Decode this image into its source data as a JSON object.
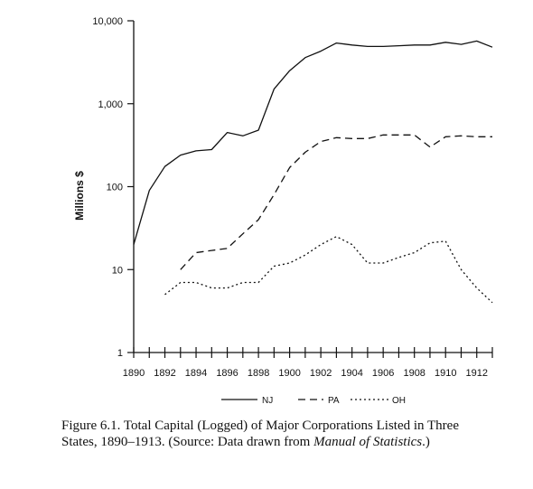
{
  "chart_data": {
    "type": "line",
    "ylabel": "Millions $",
    "xlabel": "",
    "y_scale": "log",
    "ylim": [
      1,
      10000
    ],
    "xlim": [
      1890,
      1913
    ],
    "y_ticks": [
      1,
      10,
      100,
      1000,
      10000
    ],
    "y_tick_labels": [
      "1",
      "10",
      "100",
      "1,000",
      "10,000"
    ],
    "x_tick_labels": [
      "1890",
      "1892",
      "1894",
      "1896",
      "1898",
      "1900",
      "1902",
      "1904",
      "1906",
      "1908",
      "1910",
      "1912"
    ],
    "legend_position": "bottom",
    "series": [
      {
        "name": "NJ",
        "style": "solid",
        "x": [
          1890,
          1891,
          1892,
          1893,
          1894,
          1895,
          1896,
          1897,
          1898,
          1899,
          1900,
          1901,
          1902,
          1903,
          1904,
          1905,
          1906,
          1907,
          1908,
          1909,
          1910,
          1911,
          1912,
          1913
        ],
        "values": [
          20,
          90,
          175,
          240,
          270,
          280,
          450,
          410,
          480,
          1500,
          2500,
          3600,
          4300,
          5400,
          5100,
          4900,
          4900,
          5000,
          5100,
          5100,
          5500,
          5200,
          5700,
          4800
        ]
      },
      {
        "name": "PA",
        "style": "dashed",
        "x": [
          1893,
          1894,
          1895,
          1896,
          1897,
          1898,
          1899,
          1900,
          1901,
          1902,
          1903,
          1904,
          1905,
          1906,
          1907,
          1908,
          1909,
          1910,
          1911,
          1912,
          1913
        ],
        "values": [
          10,
          16,
          17,
          18,
          27,
          40,
          80,
          170,
          260,
          350,
          390,
          380,
          380,
          420,
          420,
          420,
          300,
          400,
          410,
          400,
          400
        ]
      },
      {
        "name": "OH",
        "style": "dotted",
        "x": [
          1892,
          1893,
          1894,
          1895,
          1896,
          1897,
          1898,
          1899,
          1900,
          1901,
          1902,
          1903,
          1904,
          1905,
          1906,
          1907,
          1908,
          1909,
          1910,
          1911,
          1912,
          1913
        ],
        "values": [
          5,
          7,
          7,
          6,
          6,
          7,
          7,
          11,
          12,
          15,
          20,
          25,
          20,
          12,
          12,
          14,
          16,
          21,
          22,
          10,
          6,
          4
        ]
      }
    ]
  },
  "caption": {
    "prefix": "Figure 6.1. Total Capital (Logged) of Major Corporations Listed in Three States, 1890–1913. (Source: Data drawn from ",
    "source_title": "Manual of Statistics",
    "suffix": ".)"
  }
}
